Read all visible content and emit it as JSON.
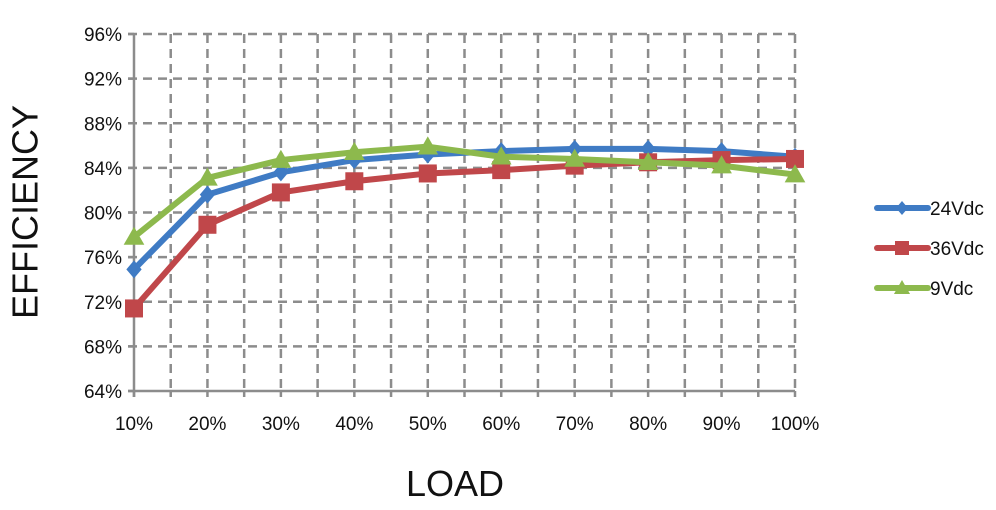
{
  "chart_data": {
    "type": "line",
    "title": "",
    "xlabel": "LOAD",
    "ylabel": "EFFICIENCY",
    "categories": [
      "10%",
      "20%",
      "30%",
      "40%",
      "50%",
      "60%",
      "70%",
      "80%",
      "90%",
      "100%"
    ],
    "x_values": [
      10,
      20,
      30,
      40,
      50,
      60,
      70,
      80,
      90,
      100
    ],
    "yticks": [
      "64%",
      "68%",
      "72%",
      "76%",
      "80%",
      "84%",
      "88%",
      "92%",
      "96%"
    ],
    "ylim": [
      64,
      96
    ],
    "ytick_step": 4,
    "grid": true,
    "grid_style": "dashed",
    "legend_position": "right",
    "series": [
      {
        "name": "24Vdc",
        "color": "#3f7bc4",
        "marker": "diamond",
        "values": [
          74.9,
          81.6,
          83.6,
          84.7,
          85.2,
          85.5,
          85.7,
          85.7,
          85.5,
          85.0
        ]
      },
      {
        "name": "36Vdc",
        "color": "#c0474a",
        "marker": "square",
        "values": [
          71.4,
          78.9,
          81.8,
          82.8,
          83.5,
          83.8,
          84.2,
          84.5,
          84.7,
          84.8
        ]
      },
      {
        "name": "9Vdc",
        "color": "#8db94d",
        "marker": "triangle",
        "values": [
          77.8,
          83.1,
          84.7,
          85.4,
          85.9,
          85.0,
          84.8,
          84.5,
          84.2,
          83.4
        ]
      }
    ]
  }
}
